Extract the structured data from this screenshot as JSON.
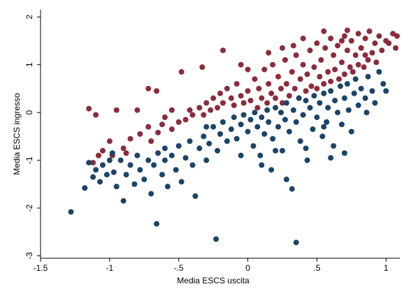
{
  "chart_data": {
    "type": "scatter",
    "title": "",
    "xlabel": "Media ESCS uscita",
    "ylabel": "Media ESCS ingresso",
    "xlim": [
      -1.5,
      1.1
    ],
    "ylim": [
      -3.05,
      2.15
    ],
    "xticks": [
      {
        "value": -1.5,
        "label": "-1.5"
      },
      {
        "value": -1.0,
        "label": "-1"
      },
      {
        "value": -0.5,
        "label": "-.5"
      },
      {
        "value": 0.0,
        "label": "0"
      },
      {
        "value": 0.5,
        "label": ".5"
      },
      {
        "value": 1.0,
        "label": "1"
      }
    ],
    "yticks": [
      {
        "value": 2,
        "label": "2"
      },
      {
        "value": 1,
        "label": "1"
      },
      {
        "value": 0,
        "label": "0"
      },
      {
        "value": -1,
        "label": "-1"
      },
      {
        "value": -2,
        "label": "-2"
      },
      {
        "value": -3,
        "label": "-3"
      }
    ],
    "grid": false,
    "series": [
      {
        "color": "#8b2c3b",
        "points": [
          [
            -1.12,
            -1.05
          ],
          [
            -1.08,
            -0.9
          ],
          [
            -1.05,
            -0.8
          ],
          [
            -1.0,
            -0.6
          ],
          [
            -0.98,
            -0.9
          ],
          [
            -0.9,
            -0.75
          ],
          [
            -0.88,
            -0.85
          ],
          [
            -0.85,
            -0.55
          ],
          [
            -0.78,
            -0.45
          ],
          [
            -0.72,
            -0.3
          ],
          [
            -0.7,
            -0.6
          ],
          [
            -0.65,
            -0.42
          ],
          [
            -0.62,
            -0.25
          ],
          [
            -0.6,
            -0.1
          ],
          [
            -0.55,
            -0.35
          ],
          [
            -0.5,
            -0.2
          ],
          [
            -0.45,
            -0.15
          ],
          [
            -0.42,
            0.05
          ],
          [
            -0.4,
            -0.05
          ],
          [
            -0.35,
            0.1
          ],
          [
            -0.32,
            -0.05
          ],
          [
            -0.3,
            0.2
          ],
          [
            -0.27,
            0.05
          ],
          [
            -0.25,
            0.3
          ],
          [
            -0.22,
            0.1
          ],
          [
            -0.2,
            0.4
          ],
          [
            -0.18,
            0.2
          ],
          [
            -0.15,
            0.5
          ],
          [
            -0.12,
            0.3
          ],
          [
            -0.1,
            0.15
          ],
          [
            -0.08,
            0.6
          ],
          [
            -0.05,
            0.35
          ],
          [
            -0.03,
            0.2
          ],
          [
            0.0,
            0.45
          ],
          [
            0.02,
            0.25
          ],
          [
            0.05,
            0.7
          ],
          [
            0.07,
            0.1
          ],
          [
            0.08,
            0.5
          ],
          [
            0.1,
            0.3
          ],
          [
            0.12,
            0.9
          ],
          [
            0.14,
            0.2
          ],
          [
            0.15,
            0.6
          ],
          [
            0.17,
            0.4
          ],
          [
            0.18,
            1.0
          ],
          [
            0.2,
            0.3
          ],
          [
            0.22,
            0.75
          ],
          [
            0.24,
            0.5
          ],
          [
            0.25,
            0.2
          ],
          [
            0.27,
            1.1
          ],
          [
            0.28,
            0.6
          ],
          [
            0.3,
            0.35
          ],
          [
            0.32,
            0.85
          ],
          [
            0.34,
            0.5
          ],
          [
            0.35,
            1.2
          ],
          [
            0.37,
            0.3
          ],
          [
            0.38,
            0.7
          ],
          [
            0.4,
            1.0
          ],
          [
            0.42,
            0.45
          ],
          [
            0.43,
            0.8
          ],
          [
            0.45,
            1.3
          ],
          [
            0.46,
            0.55
          ],
          [
            0.48,
            0.95
          ],
          [
            0.5,
            0.5
          ],
          [
            0.5,
            1.45
          ],
          [
            0.52,
            0.75
          ],
          [
            0.53,
            1.1
          ],
          [
            0.55,
            0.6
          ],
          [
            0.56,
            1.35
          ],
          [
            0.58,
            0.85
          ],
          [
            0.6,
            1.55
          ],
          [
            0.6,
            0.65
          ],
          [
            0.62,
            1.2
          ],
          [
            0.63,
            0.9
          ],
          [
            0.65,
            1.4
          ],
          [
            0.66,
            0.7
          ],
          [
            0.68,
            1.05
          ],
          [
            0.7,
            1.6
          ],
          [
            0.7,
            0.8
          ],
          [
            0.72,
            1.3
          ],
          [
            0.74,
            0.95
          ],
          [
            0.75,
            1.5
          ],
          [
            0.76,
            0.85
          ],
          [
            0.78,
            1.2
          ],
          [
            0.8,
            1.65
          ],
          [
            0.8,
            1.0
          ],
          [
            0.82,
            1.35
          ],
          [
            0.84,
            0.95
          ],
          [
            0.85,
            1.55
          ],
          [
            0.87,
            1.1
          ],
          [
            0.88,
            1.7
          ],
          [
            0.9,
            1.25
          ],
          [
            0.92,
            1.45
          ],
          [
            0.95,
            1.6
          ],
          [
            0.97,
            1.3
          ],
          [
            1.0,
            1.5
          ],
          [
            1.02,
            1.45
          ],
          [
            1.05,
            1.65
          ],
          [
            1.07,
            1.35
          ],
          [
            1.08,
            1.6
          ],
          [
            0.93,
            1.05
          ],
          [
            -1.15,
            0.08
          ],
          [
            -1.1,
            -0.05
          ],
          [
            -0.95,
            0.05
          ],
          [
            -0.72,
            0.5
          ],
          [
            -0.48,
            0.85
          ],
          [
            -0.33,
            0.95
          ],
          [
            -0.18,
            1.3
          ],
          [
            0.15,
            1.25
          ],
          [
            0.25,
            1.35
          ],
          [
            0.33,
            1.4
          ],
          [
            0.55,
            1.7
          ],
          [
            0.72,
            1.72
          ],
          [
            -0.66,
            0.45
          ],
          [
            -0.8,
            0.05
          ],
          [
            -0.55,
            0.05
          ],
          [
            0.0,
            0.9
          ],
          [
            -0.05,
            1.0
          ],
          [
            0.4,
            1.55
          ],
          [
            0.68,
            1.5
          ],
          [
            0.85,
            1.2
          ]
        ]
      },
      {
        "color": "#1c4467",
        "points": [
          [
            -1.28,
            -2.08
          ],
          [
            -1.18,
            -1.58
          ],
          [
            -1.12,
            -1.35
          ],
          [
            -1.1,
            -1.2
          ],
          [
            -1.07,
            -1.45
          ],
          [
            -1.05,
            -1.1
          ],
          [
            -1.02,
            -1.3
          ],
          [
            -1.0,
            -1.0
          ],
          [
            -0.97,
            -1.25
          ],
          [
            -0.95,
            -1.55
          ],
          [
            -0.92,
            -1.0
          ],
          [
            -0.9,
            -1.85
          ],
          [
            -0.88,
            -1.3
          ],
          [
            -0.85,
            -1.1
          ],
          [
            -0.82,
            -1.5
          ],
          [
            -0.8,
            -0.9
          ],
          [
            -0.78,
            -1.2
          ],
          [
            -0.75,
            -1.4
          ],
          [
            -0.72,
            -1.0
          ],
          [
            -0.7,
            -1.7
          ],
          [
            -0.68,
            -1.1
          ],
          [
            -0.66,
            -2.33
          ],
          [
            -0.65,
            -0.85
          ],
          [
            -0.62,
            -1.3
          ],
          [
            -0.6,
            -1.0
          ],
          [
            -0.58,
            -1.55
          ],
          [
            -0.55,
            -0.9
          ],
          [
            -0.52,
            -1.2
          ],
          [
            -0.5,
            -0.7
          ],
          [
            -0.48,
            -1.45
          ],
          [
            -0.45,
            -0.95
          ],
          [
            -0.42,
            -0.6
          ],
          [
            -0.4,
            -1.1
          ],
          [
            -0.38,
            -1.75
          ],
          [
            -0.35,
            -0.75
          ],
          [
            -0.32,
            -0.5
          ],
          [
            -0.3,
            -1.0
          ],
          [
            -0.28,
            -0.65
          ],
          [
            -0.25,
            -0.3
          ],
          [
            -0.23,
            -2.65
          ],
          [
            -0.22,
            -0.8
          ],
          [
            -0.2,
            -0.45
          ],
          [
            -0.18,
            -0.2
          ],
          [
            -0.15,
            -0.6
          ],
          [
            -0.12,
            -0.35
          ],
          [
            -0.1,
            -0.1
          ],
          [
            -0.08,
            -0.55
          ],
          [
            -0.05,
            -0.25
          ],
          [
            -0.03,
            -0.05
          ],
          [
            0.0,
            -0.4
          ],
          [
            0.02,
            -0.15
          ],
          [
            0.04,
            -0.7
          ],
          [
            0.05,
            0.0
          ],
          [
            0.07,
            -0.3
          ],
          [
            0.09,
            -0.9
          ],
          [
            0.1,
            -0.1
          ],
          [
            0.12,
            -0.45
          ],
          [
            0.14,
            0.05
          ],
          [
            0.15,
            -0.2
          ],
          [
            0.17,
            -1.2
          ],
          [
            0.18,
            -0.55
          ],
          [
            0.2,
            0.1
          ],
          [
            0.22,
            -0.3
          ],
          [
            0.24,
            0.0
          ],
          [
            0.25,
            -0.8
          ],
          [
            0.27,
            -0.15
          ],
          [
            0.28,
            0.2
          ],
          [
            0.3,
            -0.4
          ],
          [
            0.32,
            -1.6
          ],
          [
            0.33,
            0.05
          ],
          [
            0.35,
            -0.2
          ],
          [
            0.35,
            -2.72
          ],
          [
            0.37,
            0.3
          ],
          [
            0.38,
            -0.6
          ],
          [
            0.4,
            -0.05
          ],
          [
            0.42,
            0.25
          ],
          [
            0.43,
            -1.0
          ],
          [
            0.45,
            0.1
          ],
          [
            0.47,
            -0.35
          ],
          [
            0.48,
            0.35
          ],
          [
            0.5,
            -0.1
          ],
          [
            0.52,
            0.2
          ],
          [
            0.54,
            -0.5
          ],
          [
            0.55,
            0.4
          ],
          [
            0.57,
            -0.2
          ],
          [
            0.58,
            0.1
          ],
          [
            0.6,
            0.45
          ],
          [
            0.62,
            -0.7
          ],
          [
            0.63,
            0.25
          ],
          [
            0.65,
            0.0
          ],
          [
            0.67,
            0.55
          ],
          [
            0.68,
            -0.25
          ],
          [
            0.7,
            0.3
          ],
          [
            0.72,
            0.6
          ],
          [
            0.73,
            0.05
          ],
          [
            0.75,
            -0.4
          ],
          [
            0.77,
            0.4
          ],
          [
            0.78,
            0.7
          ],
          [
            0.8,
            0.15
          ],
          [
            0.82,
            0.5
          ],
          [
            0.85,
            0.3
          ],
          [
            0.87,
            0.75
          ],
          [
            0.9,
            0.45
          ],
          [
            0.92,
            0.2
          ],
          [
            0.95,
            0.85
          ],
          [
            0.98,
            0.6
          ],
          [
            1.0,
            0.45
          ],
          [
            -1.15,
            -1.05
          ],
          [
            -0.98,
            -0.85
          ],
          [
            -0.6,
            -0.75
          ],
          [
            -0.3,
            -0.3
          ],
          [
            -0.05,
            -0.9
          ],
          [
            0.1,
            -1.1
          ],
          [
            0.28,
            -1.4
          ],
          [
            0.6,
            -0.95
          ],
          [
            0.7,
            -0.85
          ],
          [
            0.42,
            -0.75
          ],
          [
            0.2,
            -0.8
          ],
          [
            0.55,
            -0.3
          ],
          [
            0.86,
            0.0
          ]
        ]
      }
    ]
  }
}
